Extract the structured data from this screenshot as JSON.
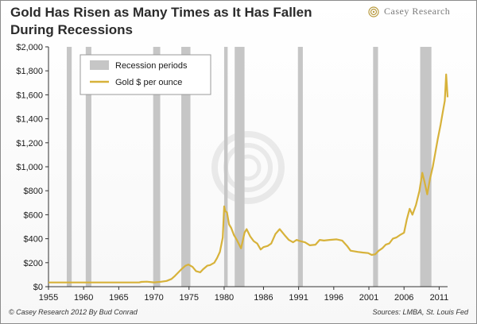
{
  "header": {
    "title_line1": "Gold Has Risen as Many Times as It Has Fallen",
    "title_line2": "During Recessions",
    "brand": "Casey Research"
  },
  "footer": {
    "left": "© Casey Research 2012 By Bud Conrad",
    "right": "Sources: LMBA, St. Louis Fed"
  },
  "colors": {
    "gold": "#d7b23a",
    "recession": "#c6c6c6"
  },
  "chart_data": {
    "type": "line",
    "title": "Gold Has Risen as Many Times as It Has Fallen During Recessions",
    "ylim": [
      0,
      2000
    ],
    "xlim": [
      1955,
      2011.8
    ],
    "y_ticks": [
      "$0",
      "$200",
      "$400",
      "$600",
      "$800",
      "$1,000",
      "$1,200",
      "$1,400",
      "$1,600",
      "$1,800",
      "$2,000"
    ],
    "x_ticks": [
      "1955",
      "1960",
      "1965",
      "1970",
      "1975",
      "1980",
      "1986",
      "1991",
      "1996",
      "2001",
      "2006",
      "2011"
    ],
    "x_tick_years": [
      1955,
      1960,
      1965,
      1970,
      1975,
      1980,
      1985.6,
      1990.6,
      1995.6,
      2000.6,
      2005.6,
      2010.6
    ],
    "grid": false,
    "legend": {
      "placement": "top-left",
      "entries": [
        "Recession periods",
        "Gold $ per ounce"
      ]
    },
    "recessions": [
      {
        "start": 1957.6,
        "end": 1958.3
      },
      {
        "start": 1960.3,
        "end": 1961.1
      },
      {
        "start": 1969.9,
        "end": 1970.9
      },
      {
        "start": 1973.9,
        "end": 1975.2
      },
      {
        "start": 1980.0,
        "end": 1980.5
      },
      {
        "start": 1981.5,
        "end": 1982.9
      },
      {
        "start": 1990.5,
        "end": 1991.2
      },
      {
        "start": 2001.2,
        "end": 2001.9
      },
      {
        "start": 2007.9,
        "end": 2009.5
      }
    ],
    "series": [
      {
        "name": "Gold $ per ounce",
        "x": [
          1955,
          1960,
          1965,
          1967.9,
          1968.2,
          1969.0,
          1970.0,
          1971.0,
          1971.8,
          1972.5,
          1973.0,
          1973.5,
          1974.0,
          1974.5,
          1974.9,
          1975.5,
          1976.0,
          1976.6,
          1977.0,
          1977.6,
          1978.0,
          1978.6,
          1979.0,
          1979.4,
          1979.8,
          1980.0,
          1980.15,
          1980.4,
          1980.7,
          1981.0,
          1981.4,
          1981.8,
          1982.4,
          1982.9,
          1983.2,
          1983.7,
          1984.2,
          1984.7,
          1985.2,
          1985.6,
          1986.2,
          1986.7,
          1987.3,
          1987.9,
          1988.6,
          1989.2,
          1989.8,
          1990.3,
          1990.8,
          1991.5,
          1992.2,
          1993.0,
          1993.6,
          1994.2,
          1995.0,
          1996.0,
          1996.8,
          1997.5,
          1998.0,
          1999.0,
          1999.7,
          2000.5,
          2001.0,
          2001.5,
          2002.0,
          2002.5,
          2003.0,
          2003.5,
          2004.0,
          2004.5,
          2005.0,
          2005.6,
          2006.0,
          2006.4,
          2006.8,
          2007.3,
          2007.8,
          2008.2,
          2008.5,
          2008.9,
          2009.3,
          2009.7,
          2010.0,
          2010.4,
          2010.8,
          2011.1,
          2011.4,
          2011.6,
          2011.7,
          2011.8
        ],
        "values": [
          35,
          35,
          35,
          35,
          40,
          42,
          36,
          41,
          48,
          64,
          90,
          120,
          150,
          175,
          185,
          165,
          130,
          120,
          145,
          175,
          180,
          200,
          240,
          290,
          410,
          670,
          630,
          620,
          520,
          490,
          430,
          390,
          320,
          450,
          480,
          420,
          380,
          360,
          310,
          330,
          340,
          360,
          440,
          480,
          430,
          390,
          370,
          390,
          380,
          370,
          345,
          350,
          390,
          385,
          390,
          395,
          385,
          340,
          300,
          290,
          285,
          280,
          265,
          270,
          300,
          320,
          350,
          360,
          400,
          410,
          430,
          450,
          560,
          650,
          600,
          680,
          800,
          950,
          880,
          770,
          900,
          1000,
          1100,
          1230,
          1350,
          1450,
          1550,
          1770,
          1680,
          1580
        ]
      }
    ]
  }
}
